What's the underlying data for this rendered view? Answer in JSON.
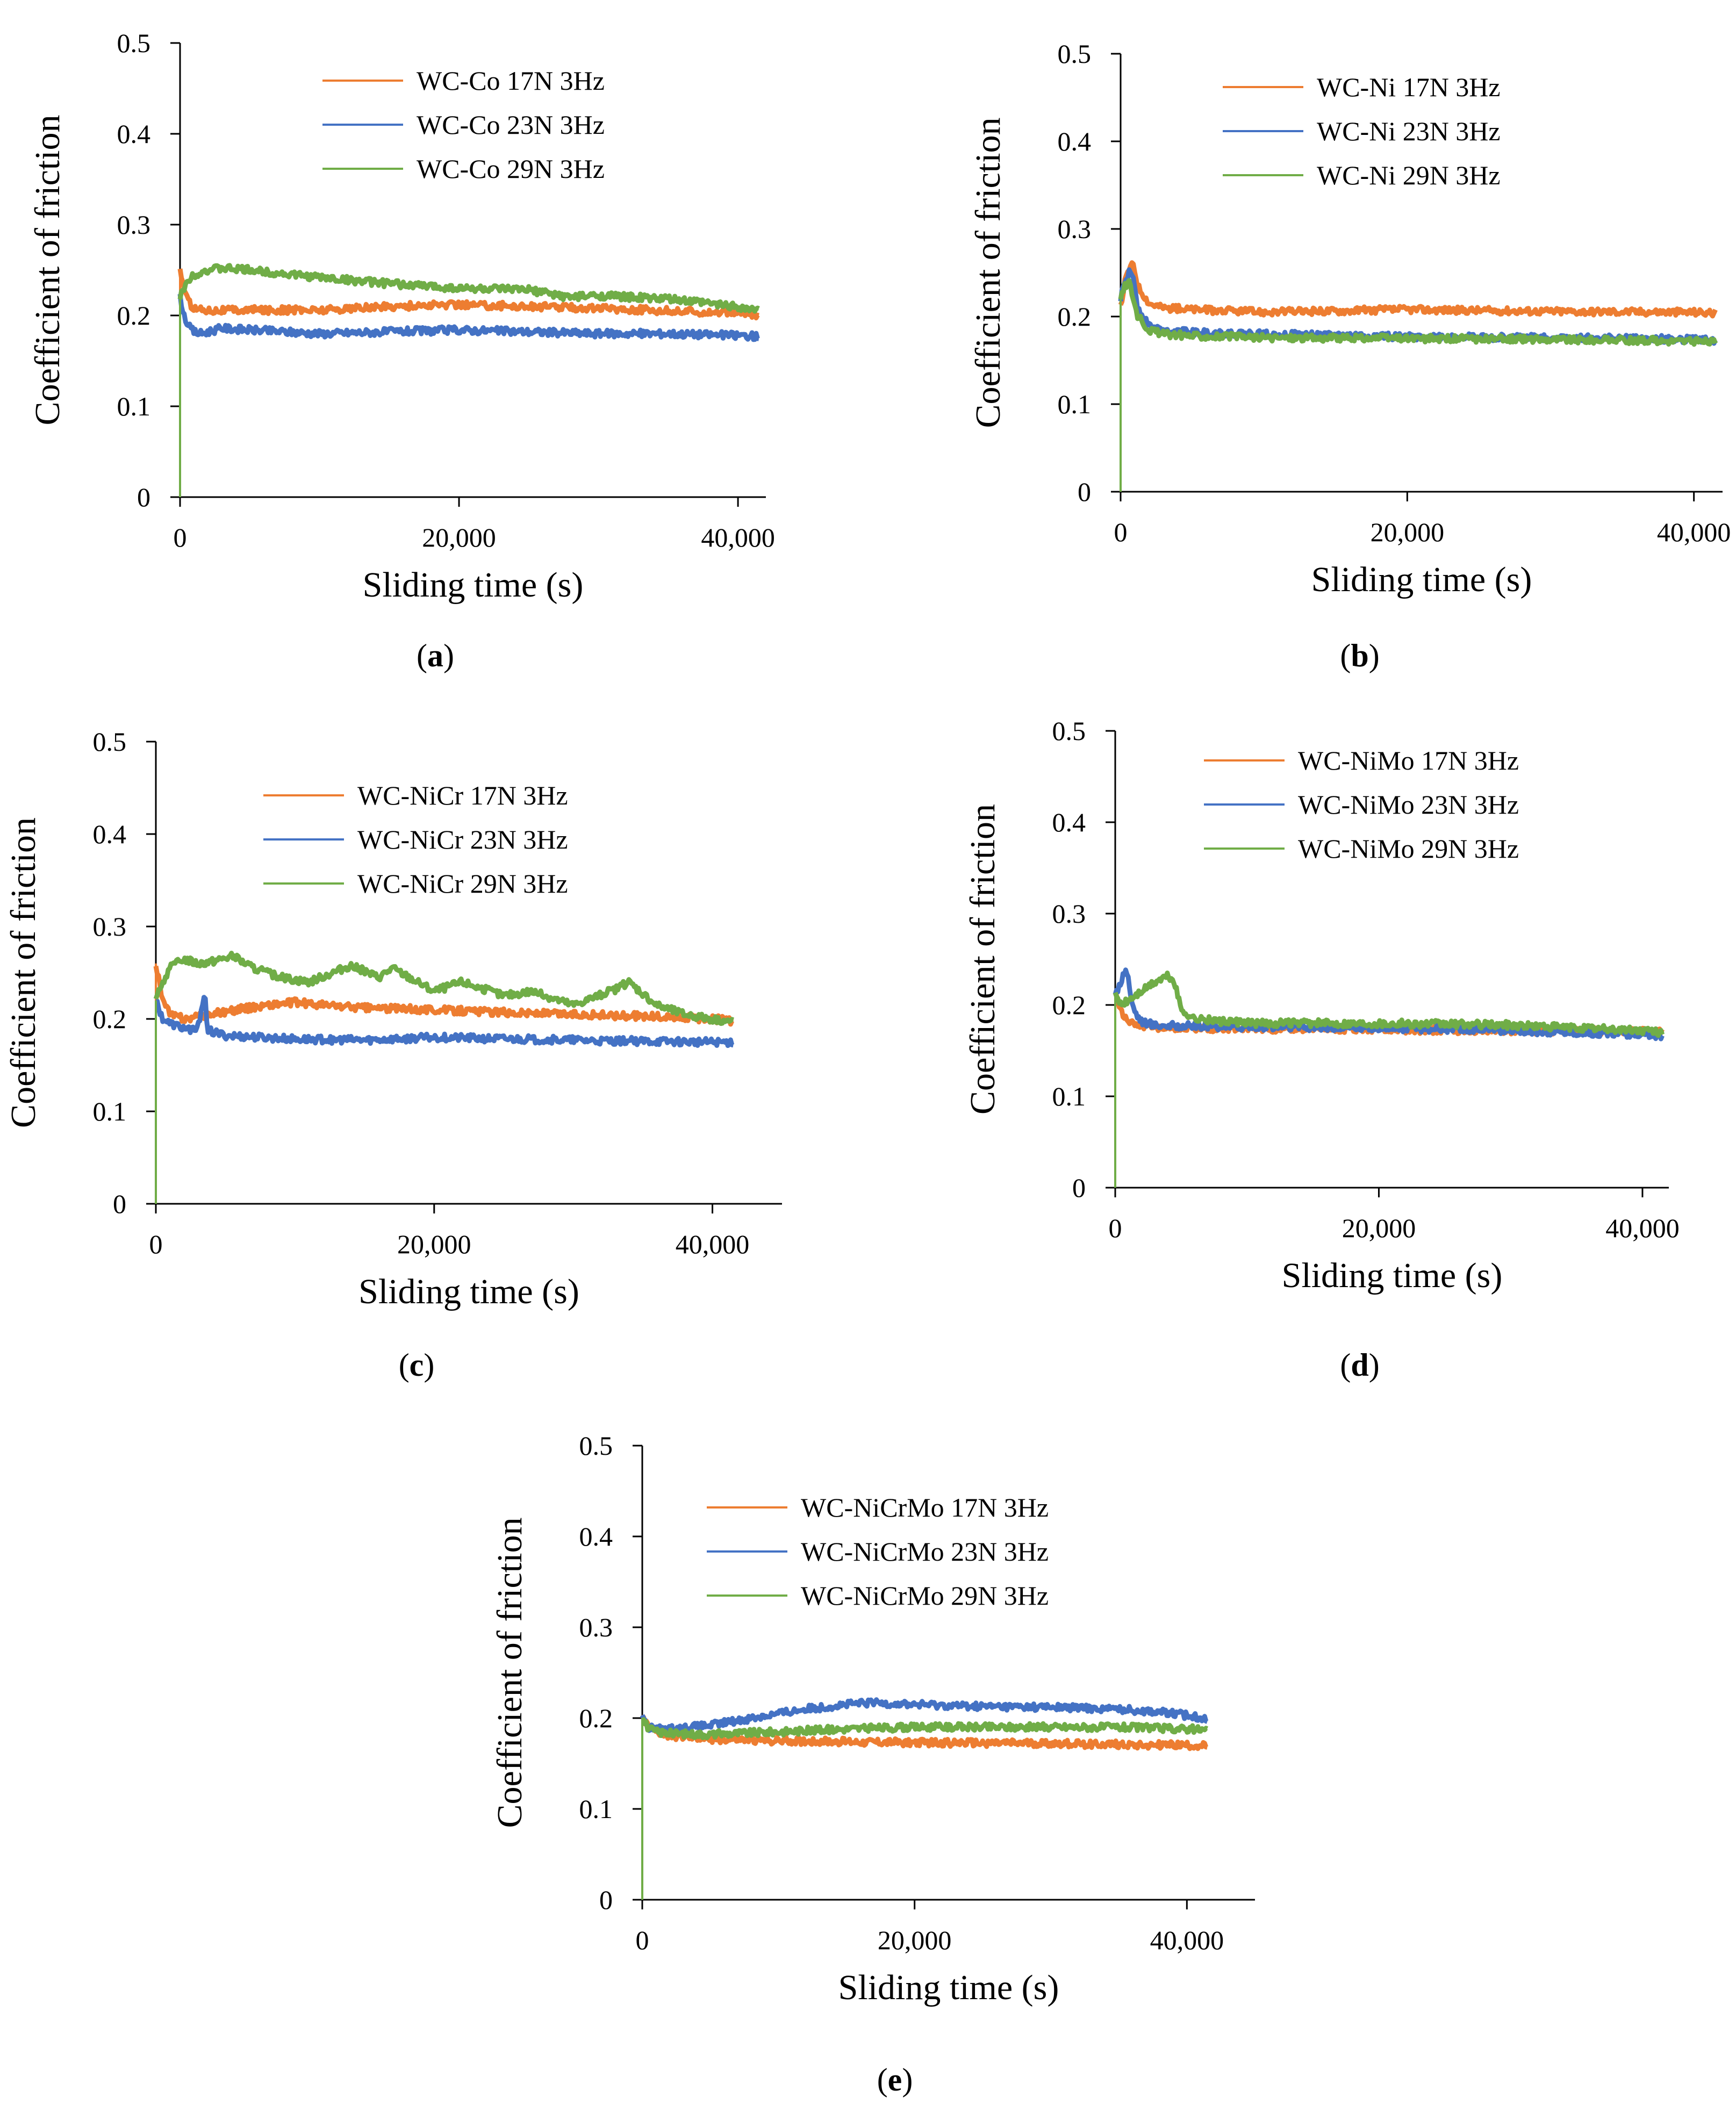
{
  "figure": {
    "panels": 5
  },
  "chart_data": [
    {
      "type": "line",
      "label": "a",
      "xlabel": "Sliding time (s)",
      "ylabel": "Coefficient of friction",
      "xlim": [
        0,
        42000
      ],
      "ylim": [
        0,
        0.5
      ],
      "xticks": [
        "0",
        "20,000",
        "40,000"
      ],
      "yticks": [
        "0",
        "0.1",
        "0.2",
        "0.3",
        "0.4",
        "0.5"
      ],
      "legend_position": "top-center",
      "series": [
        {
          "name": "WC-Co 17N 3Hz",
          "color": "#ED7D31",
          "x": [
            0,
            300,
            600,
            1000,
            1500,
            2000,
            3000,
            5000,
            10000,
            15000,
            20000,
            25000,
            30000,
            35000,
            40000,
            41500
          ],
          "y": [
            0.25,
            0.23,
            0.215,
            0.208,
            0.207,
            0.206,
            0.206,
            0.206,
            0.206,
            0.21,
            0.212,
            0.21,
            0.208,
            0.205,
            0.203,
            0.2
          ]
        },
        {
          "name": "WC-Co 23N 3Hz",
          "color": "#4472C4",
          "x": [
            0,
            300,
            600,
            1000,
            1500,
            2000,
            3000,
            5000,
            10000,
            15000,
            20000,
            25000,
            30000,
            35000,
            40000,
            41500
          ],
          "y": [
            0.22,
            0.2,
            0.188,
            0.182,
            0.18,
            0.182,
            0.186,
            0.184,
            0.18,
            0.182,
            0.184,
            0.182,
            0.18,
            0.18,
            0.178,
            0.177
          ]
        },
        {
          "name": "WC-Co 29N 3Hz",
          "color": "#70AD47",
          "x": [
            0,
            300,
            600,
            1000,
            1500,
            2000,
            3000,
            5000,
            8000,
            10000,
            15000,
            20000,
            25000,
            28000,
            30000,
            35000,
            40000,
            41500
          ],
          "y": [
            0.22,
            0.23,
            0.24,
            0.245,
            0.248,
            0.25,
            0.252,
            0.25,
            0.245,
            0.242,
            0.235,
            0.23,
            0.228,
            0.22,
            0.222,
            0.218,
            0.21,
            0.205
          ]
        }
      ]
    },
    {
      "type": "line",
      "label": "b",
      "xlabel": "Sliding time (s)",
      "ylabel": "Coefficient of friction",
      "xlim": [
        0,
        42000
      ],
      "ylim": [
        0,
        0.5
      ],
      "xticks": [
        "0",
        "20,000",
        "40,000"
      ],
      "yticks": [
        "0",
        "0.1",
        "0.2",
        "0.3",
        "0.4",
        "0.5"
      ],
      "legend_position": "top-center",
      "series": [
        {
          "name": "WC-Ni 17N 3Hz",
          "color": "#ED7D31",
          "x": [
            0,
            300,
            600,
            900,
            1200,
            2000,
            3000,
            5000,
            10000,
            20000,
            30000,
            40000,
            41500
          ],
          "y": [
            0.21,
            0.24,
            0.255,
            0.26,
            0.235,
            0.215,
            0.21,
            0.208,
            0.205,
            0.208,
            0.206,
            0.205,
            0.204
          ]
        },
        {
          "name": "WC-Ni 23N 3Hz",
          "color": "#4472C4",
          "x": [
            0,
            300,
            600,
            900,
            1200,
            2000,
            3000,
            5000,
            10000,
            20000,
            30000,
            40000,
            41500
          ],
          "y": [
            0.22,
            0.24,
            0.25,
            0.245,
            0.21,
            0.19,
            0.184,
            0.182,
            0.18,
            0.177,
            0.176,
            0.174,
            0.172
          ]
        },
        {
          "name": "WC-Ni 29N 3Hz",
          "color": "#70AD47",
          "x": [
            0,
            300,
            600,
            900,
            1200,
            2000,
            3000,
            5000,
            10000,
            20000,
            30000,
            40000,
            41500
          ],
          "y": [
            0.22,
            0.235,
            0.24,
            0.22,
            0.2,
            0.185,
            0.18,
            0.178,
            0.176,
            0.175,
            0.174,
            0.172,
            0.171
          ]
        }
      ]
    },
    {
      "type": "line",
      "label": "c",
      "xlabel": "Sliding time (s)",
      "ylabel": "Coefficient of friction",
      "xlim": [
        0,
        45000
      ],
      "ylim": [
        0,
        0.5
      ],
      "xticks": [
        "0",
        "20,000",
        "40,000"
      ],
      "yticks": [
        "0",
        "0.1",
        "0.2",
        "0.3",
        "0.4",
        "0.5"
      ],
      "legend_position": "top-center",
      "series": [
        {
          "name": "WC-NiCr 17N 3Hz",
          "color": "#ED7D31",
          "x": [
            0,
            500,
            1000,
            2000,
            3000,
            5000,
            8000,
            10000,
            12000,
            15000,
            20000,
            25000,
            30000,
            35000,
            40000,
            41500
          ],
          "y": [
            0.26,
            0.22,
            0.205,
            0.2,
            0.202,
            0.208,
            0.215,
            0.218,
            0.215,
            0.212,
            0.21,
            0.207,
            0.205,
            0.203,
            0.2,
            0.198
          ]
        },
        {
          "name": "WC-NiCr 23N 3Hz",
          "color": "#4472C4",
          "x": [
            0,
            500,
            1000,
            2000,
            3000,
            3500,
            3700,
            4000,
            5000,
            10000,
            15000,
            20000,
            30000,
            40000,
            41500
          ],
          "y": [
            0.22,
            0.2,
            0.195,
            0.19,
            0.188,
            0.23,
            0.19,
            0.186,
            0.182,
            0.178,
            0.177,
            0.18,
            0.177,
            0.175,
            0.175
          ]
        },
        {
          "name": "WC-NiCr 29N 3Hz",
          "color": "#70AD47",
          "x": [
            0,
            500,
            1000,
            2000,
            3000,
            4000,
            5500,
            7000,
            9000,
            11000,
            14000,
            16000,
            17000,
            20000,
            22000,
            25000,
            27000,
            30000,
            33000,
            34000,
            36000,
            38000,
            40000,
            41500
          ],
          "y": [
            0.22,
            0.24,
            0.255,
            0.265,
            0.26,
            0.262,
            0.268,
            0.255,
            0.245,
            0.24,
            0.258,
            0.245,
            0.255,
            0.23,
            0.24,
            0.225,
            0.23,
            0.215,
            0.232,
            0.24,
            0.215,
            0.205,
            0.2,
            0.197
          ]
        }
      ]
    },
    {
      "type": "line",
      "label": "d",
      "xlabel": "Sliding time (s)",
      "ylabel": "Coefficient of friction",
      "xlim": [
        0,
        42000
      ],
      "ylim": [
        0,
        0.5
      ],
      "xticks": [
        "0",
        "20,000",
        "40,000"
      ],
      "yticks": [
        "0",
        "0.1",
        "0.2",
        "0.3",
        "0.4",
        "0.5"
      ],
      "legend_position": "top-center",
      "series": [
        {
          "name": "WC-NiMo 17N 3Hz",
          "color": "#ED7D31",
          "x": [
            0,
            300,
            600,
            1000,
            2000,
            3000,
            5000,
            10000,
            20000,
            30000,
            40000,
            41500
          ],
          "y": [
            0.21,
            0.2,
            0.19,
            0.182,
            0.178,
            0.176,
            0.175,
            0.174,
            0.173,
            0.172,
            0.171,
            0.17
          ]
        },
        {
          "name": "WC-NiMo 23N 3Hz",
          "color": "#4472C4",
          "x": [
            0,
            400,
            800,
            1000,
            1200,
            1600,
            2000,
            3000,
            5000,
            10000,
            20000,
            30000,
            40000,
            41500
          ],
          "y": [
            0.21,
            0.225,
            0.24,
            0.23,
            0.205,
            0.19,
            0.182,
            0.178,
            0.177,
            0.176,
            0.175,
            0.172,
            0.168,
            0.166
          ]
        },
        {
          "name": "WC-NiMo 29N 3Hz",
          "color": "#70AD47",
          "x": [
            0,
            500,
            1000,
            2000,
            3000,
            4000,
            4500,
            5000,
            6000,
            8000,
            10000,
            20000,
            30000,
            40000,
            41500
          ],
          "y": [
            0.21,
            0.2,
            0.205,
            0.215,
            0.225,
            0.232,
            0.225,
            0.195,
            0.185,
            0.182,
            0.18,
            0.18,
            0.178,
            0.172,
            0.17
          ]
        }
      ]
    },
    {
      "type": "line",
      "label": "e",
      "xlabel": "Sliding time (s)",
      "ylabel": "Coefficient of friction",
      "xlim": [
        0,
        45000
      ],
      "ylim": [
        0,
        0.5
      ],
      "xticks": [
        "0",
        "20,000",
        "40,000"
      ],
      "yticks": [
        "0",
        "0.1",
        "0.2",
        "0.3",
        "0.4",
        "0.5"
      ],
      "legend_position": "top-center",
      "series": [
        {
          "name": "WC-NiCrMo 17N 3Hz",
          "color": "#ED7D31",
          "x": [
            0,
            500,
            1000,
            2000,
            5000,
            10000,
            20000,
            30000,
            40000,
            41500
          ],
          "y": [
            0.2,
            0.19,
            0.185,
            0.18,
            0.177,
            0.175,
            0.173,
            0.172,
            0.17,
            0.169
          ]
        },
        {
          "name": "WC-NiCrMo 23N 3Hz",
          "color": "#4472C4",
          "x": [
            0,
            500,
            1000,
            2000,
            5000,
            8000,
            10000,
            12000,
            15000,
            17000,
            20000,
            25000,
            30000,
            35000,
            38000,
            40000,
            41500
          ],
          "y": [
            0.2,
            0.19,
            0.188,
            0.188,
            0.192,
            0.2,
            0.205,
            0.21,
            0.215,
            0.217,
            0.215,
            0.213,
            0.212,
            0.21,
            0.207,
            0.203,
            0.2
          ]
        },
        {
          "name": "WC-NiCrMo 29N 3Hz",
          "color": "#70AD47",
          "x": [
            0,
            500,
            1000,
            2000,
            5000,
            10000,
            15000,
            20000,
            25000,
            30000,
            35000,
            40000,
            41500
          ],
          "y": [
            0.2,
            0.188,
            0.185,
            0.183,
            0.182,
            0.185,
            0.188,
            0.19,
            0.19,
            0.19,
            0.19,
            0.188,
            0.187
          ]
        }
      ]
    }
  ]
}
